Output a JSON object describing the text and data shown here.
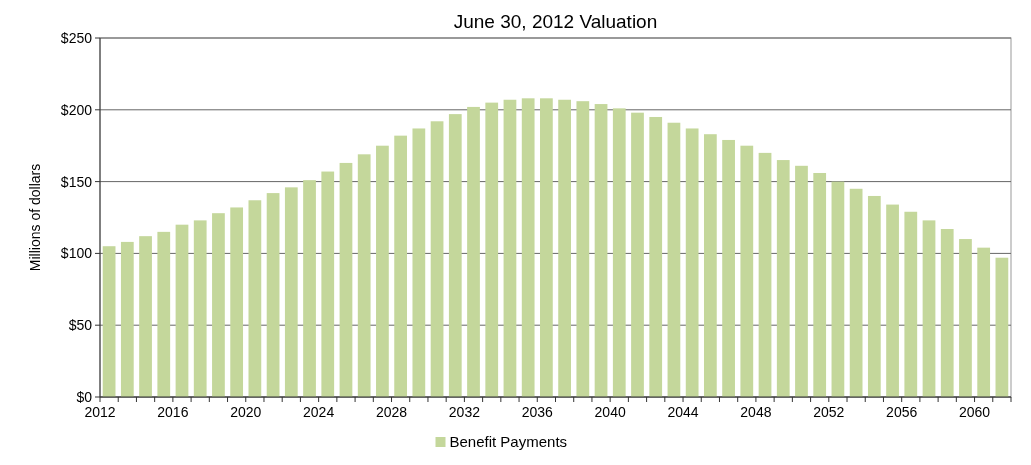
{
  "chart_data": {
    "type": "bar",
    "title": "June 30, 2012 Valuation",
    "ylabel": "Millions of dollars",
    "categories": [
      "2012",
      null,
      null,
      null,
      "2016",
      null,
      null,
      null,
      "2020",
      null,
      null,
      null,
      "2024",
      null,
      null,
      null,
      "2028",
      null,
      null,
      null,
      "2032",
      null,
      null,
      null,
      "2036",
      null,
      null,
      null,
      "2040",
      null,
      null,
      null,
      "2044",
      null,
      null,
      null,
      "2048",
      null,
      null,
      null,
      "2052",
      null,
      null,
      null,
      "2056",
      null,
      null,
      null,
      "2060",
      null
    ],
    "series": [
      {
        "name": "Benefit Payments",
        "color": "#c4d79b",
        "values": [
          105,
          108,
          112,
          115,
          120,
          123,
          128,
          132,
          137,
          142,
          146,
          151,
          157,
          163,
          169,
          175,
          182,
          187,
          192,
          197,
          202,
          205,
          207,
          208,
          208,
          207,
          206,
          204,
          201,
          198,
          195,
          191,
          187,
          183,
          179,
          175,
          170,
          165,
          161,
          156,
          150,
          145,
          140,
          134,
          129,
          123,
          117,
          110,
          104,
          97
        ]
      }
    ],
    "ylim": [
      0,
      250
    ],
    "yticks": [
      {
        "value": 0,
        "label": "$0"
      },
      {
        "value": 50,
        "label": "$50"
      },
      {
        "value": 100,
        "label": "$100"
      },
      {
        "value": 150,
        "label": "$150"
      },
      {
        "value": 200,
        "label": "$200"
      },
      {
        "value": 250,
        "label": "$250"
      }
    ],
    "grid": "y",
    "legend": "bottom"
  }
}
